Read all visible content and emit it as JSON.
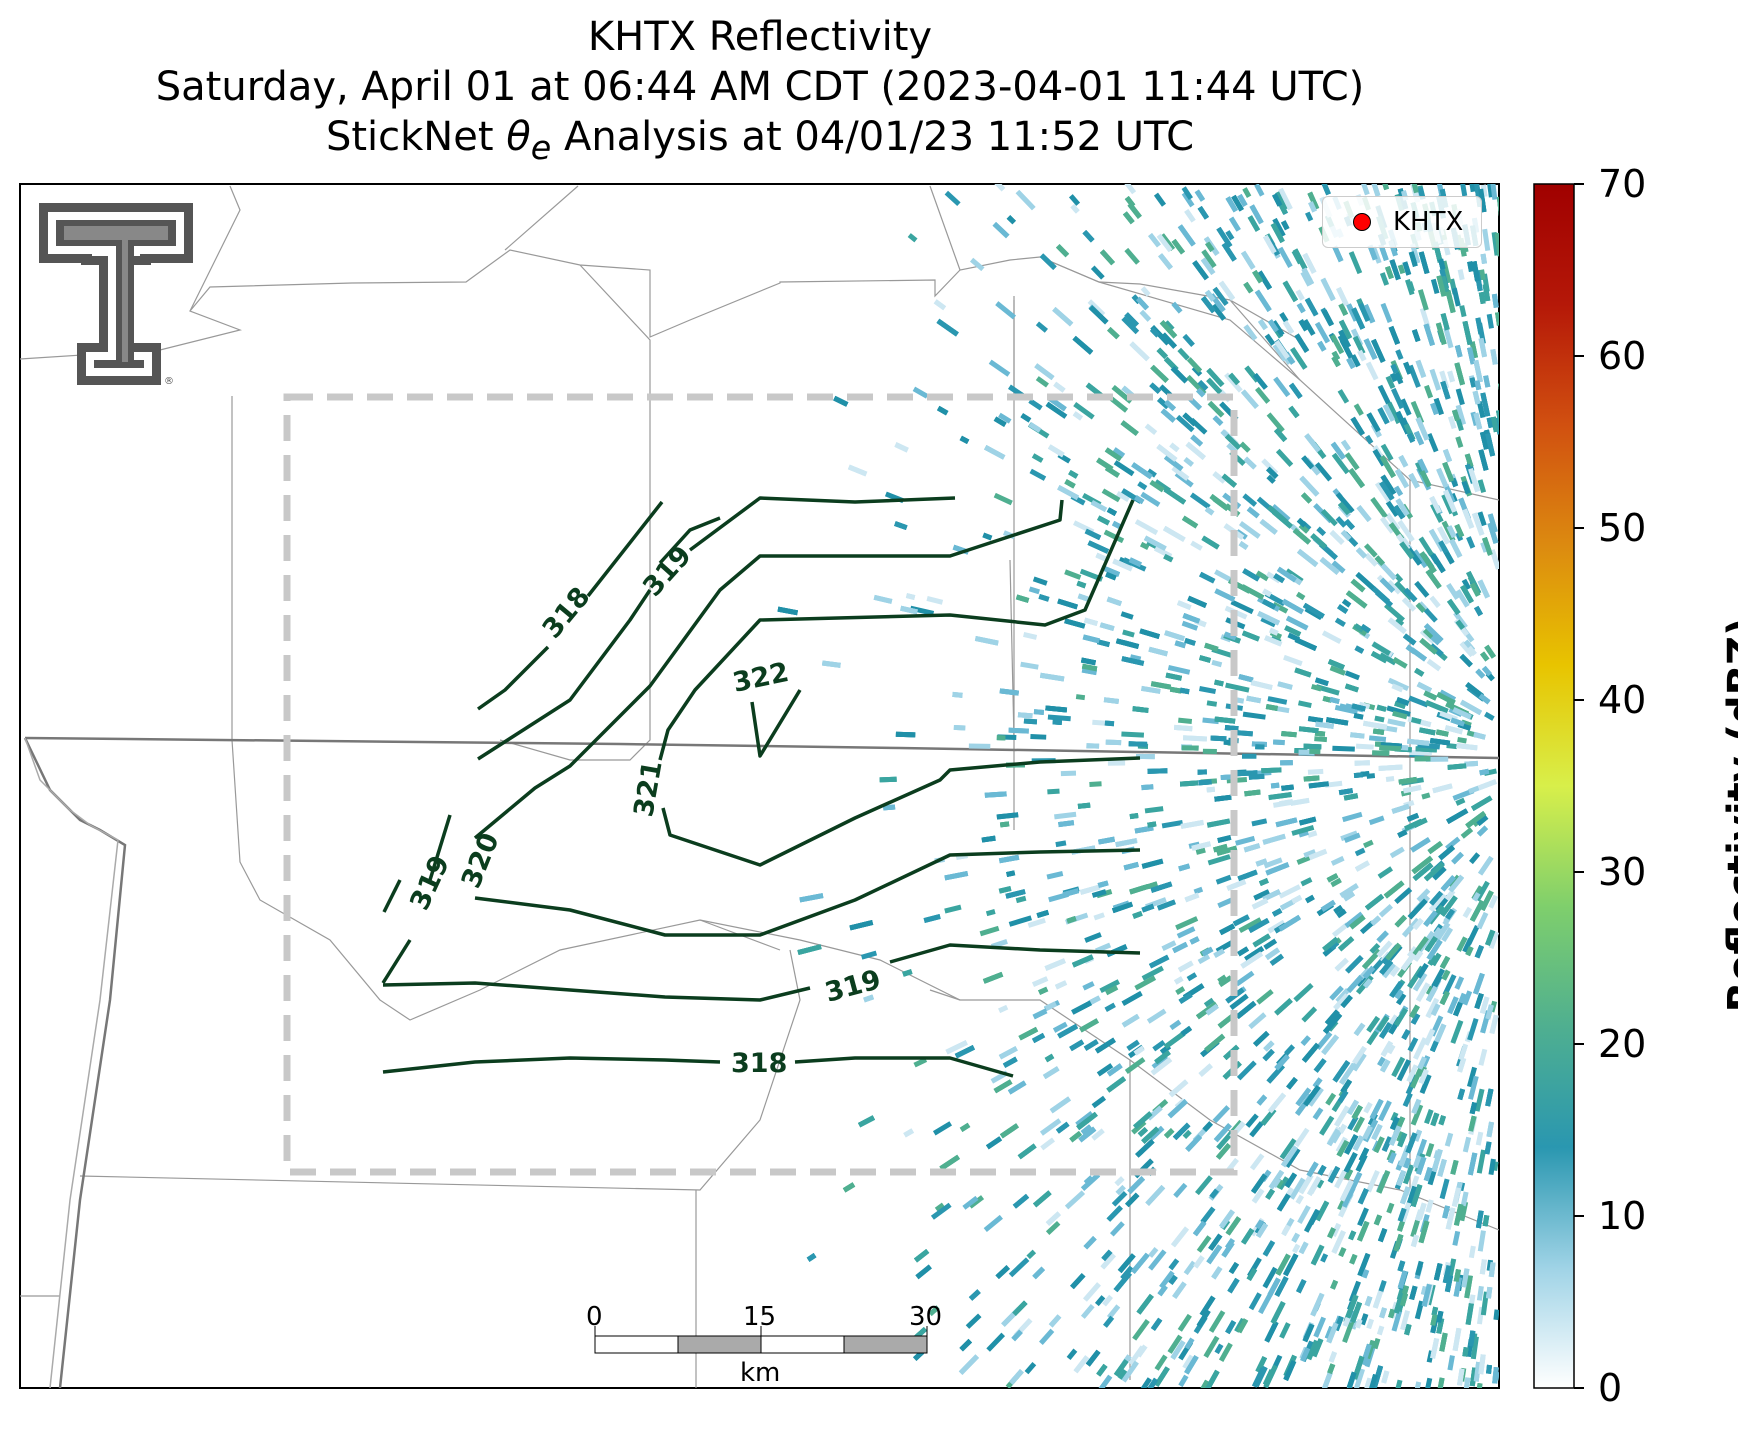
{
  "title": {
    "line1": "KHTX Reflectivity",
    "line2": "Saturday, April 01 at 06:44 AM CDT (2023-04-01 11:44 UTC)",
    "line3_prefix": "StickNet ",
    "line3_theta": "θ",
    "line3_sub": "e",
    "line3_suffix": " Analysis at 04/01/23 11:52 UTC"
  },
  "legend": {
    "label": "KHTX",
    "marker_color": "#ff0000"
  },
  "colorbar": {
    "label": "Reflectivity (dBZ)",
    "ticks": [
      "0",
      "10",
      "20",
      "30",
      "40",
      "50",
      "60",
      "70"
    ],
    "min": 0,
    "max": 70,
    "colors": [
      "#ffffff",
      "#9fd3e6",
      "#2a97b0",
      "#4faf90",
      "#7fcf6c",
      "#d8ef4a",
      "#e8c400",
      "#dc8a10",
      "#d15010",
      "#b51808",
      "#a00000"
    ]
  },
  "scale_bar": {
    "labels": [
      "0",
      "15",
      "30"
    ],
    "unit": "km"
  },
  "contours": {
    "color": "#0b3d1e",
    "labels": [
      "318",
      "319",
      "320",
      "321",
      "322",
      "319",
      "319",
      "318"
    ]
  },
  "logo": {
    "name": "Texas Tech Double T",
    "color": "#555555"
  }
}
